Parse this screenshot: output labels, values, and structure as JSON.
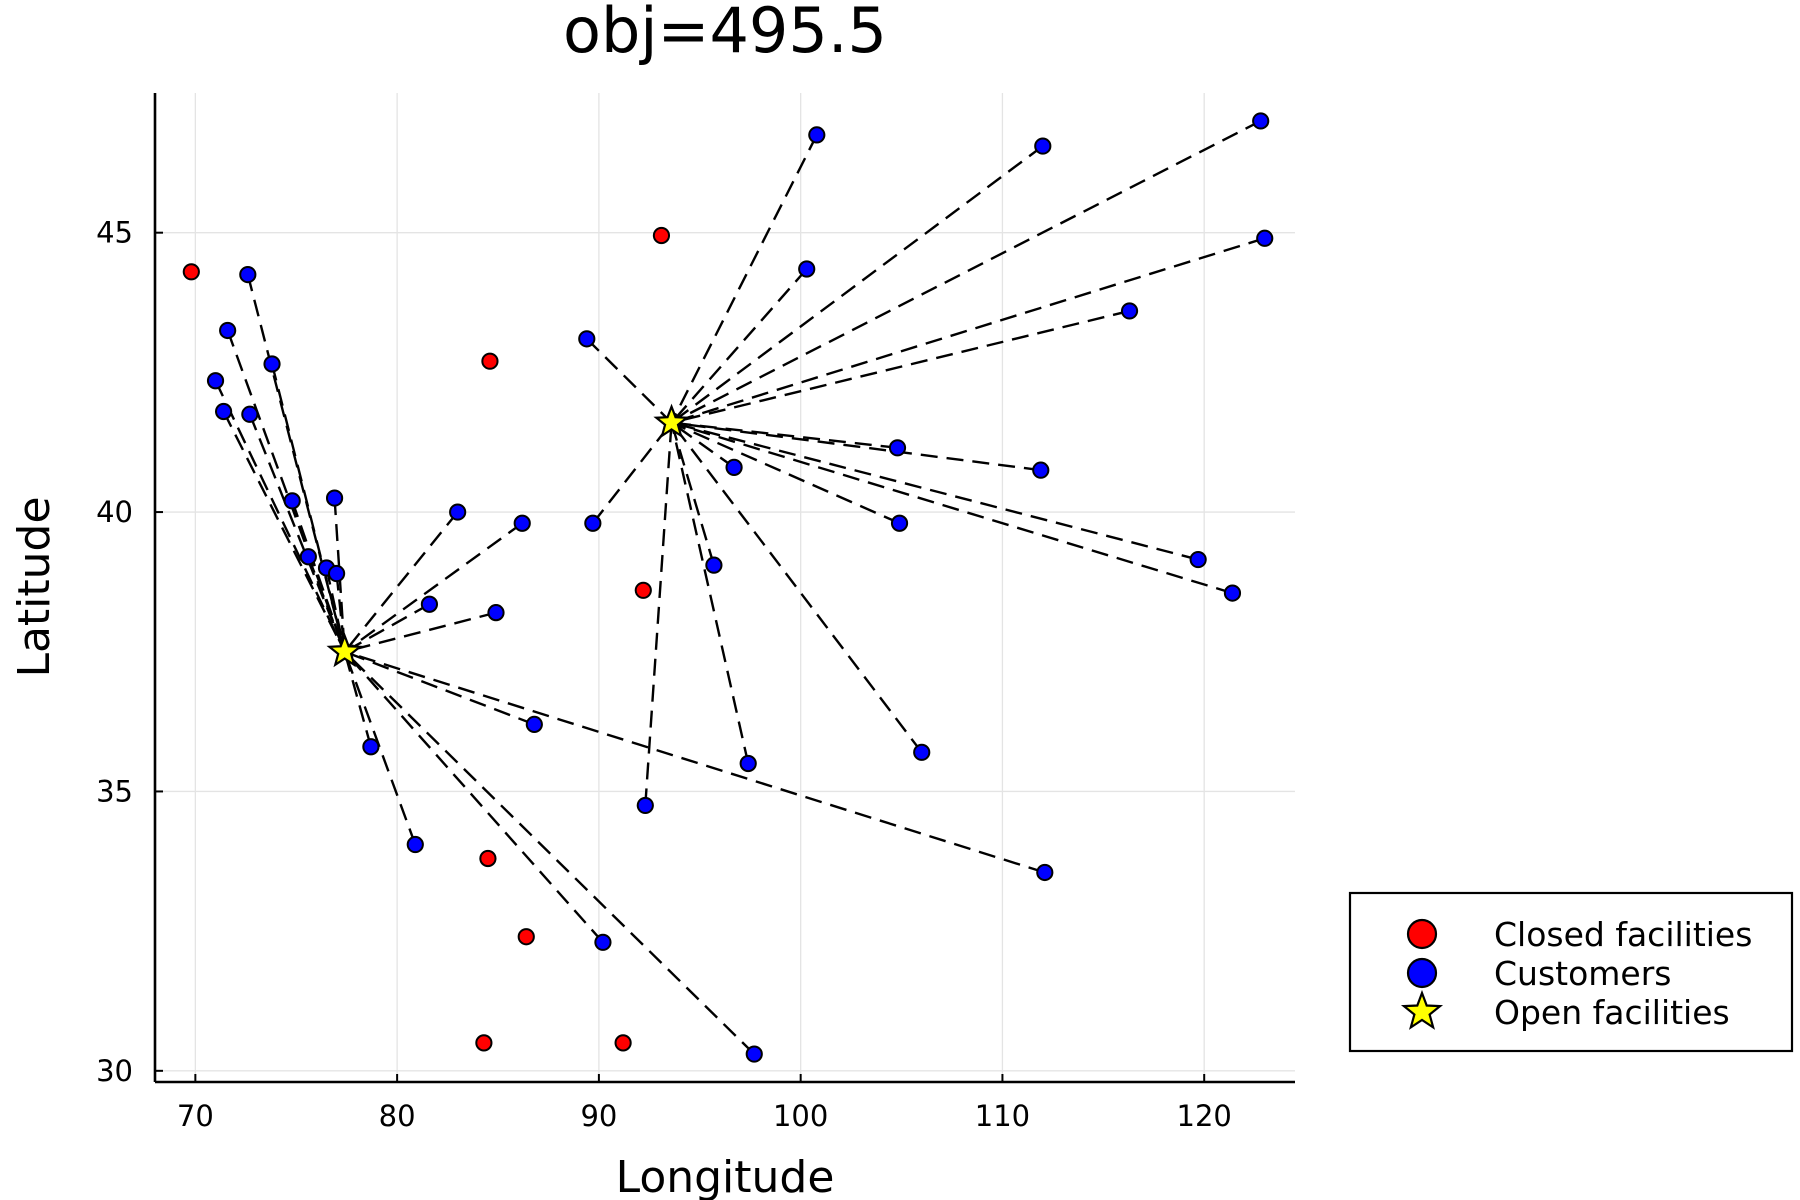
{
  "chart_data": {
    "type": "scatter",
    "title": "obj=495.5",
    "xlabel": "Longitude",
    "ylabel": "Latitude",
    "xlim": [
      68,
      124.5
    ],
    "ylim": [
      29.8,
      47.5
    ],
    "xticks": [
      70,
      80,
      90,
      100,
      110,
      120
    ],
    "yticks": [
      30,
      35,
      40,
      45
    ],
    "grid": true,
    "legend_position": "outside-bottom-right",
    "colors": {
      "closed": "#ff0000",
      "customer": "#0000ff",
      "open": "#ffff00",
      "marker_stroke": "#000000",
      "line": "#000000"
    },
    "series": [
      {
        "name": "Closed facilities",
        "marker": "circle",
        "color": "#ff0000",
        "points": [
          [
            69.8,
            44.3
          ],
          [
            84.6,
            42.7
          ],
          [
            93.1,
            44.95
          ],
          [
            92.2,
            38.6
          ],
          [
            84.5,
            33.8
          ],
          [
            86.4,
            32.4
          ],
          [
            84.3,
            30.5
          ],
          [
            91.2,
            30.5
          ]
        ]
      },
      {
        "name": "Customers",
        "marker": "circle",
        "color": "#0000ff",
        "points": [
          [
            72.6,
            44.25
          ],
          [
            71.6,
            43.25
          ],
          [
            73.8,
            42.65
          ],
          [
            71.0,
            42.35
          ],
          [
            71.4,
            41.8
          ],
          [
            72.7,
            41.75
          ],
          [
            74.8,
            40.2
          ],
          [
            76.9,
            40.25
          ],
          [
            75.6,
            39.2
          ],
          [
            76.5,
            39.0
          ],
          [
            77.0,
            38.9
          ],
          [
            81.6,
            38.35
          ],
          [
            83.0,
            40.0
          ],
          [
            86.2,
            39.8
          ],
          [
            84.9,
            38.2
          ],
          [
            86.8,
            36.2
          ],
          [
            78.7,
            35.8
          ],
          [
            80.9,
            34.05
          ],
          [
            90.2,
            32.3
          ],
          [
            97.7,
            30.3
          ],
          [
            112.1,
            33.55
          ],
          [
            89.4,
            43.1
          ],
          [
            89.7,
            39.8
          ],
          [
            100.8,
            46.75
          ],
          [
            100.3,
            44.35
          ],
          [
            112.0,
            46.55
          ],
          [
            122.8,
            47.0
          ],
          [
            123.0,
            44.9
          ],
          [
            116.3,
            43.6
          ],
          [
            104.8,
            41.15
          ],
          [
            96.7,
            40.8
          ],
          [
            111.9,
            40.75
          ],
          [
            104.9,
            39.8
          ],
          [
            95.7,
            39.05
          ],
          [
            119.7,
            39.15
          ],
          [
            121.4,
            38.55
          ],
          [
            97.4,
            35.5
          ],
          [
            106.0,
            35.7
          ],
          [
            92.3,
            34.75
          ]
        ]
      },
      {
        "name": "Open facilities",
        "marker": "star",
        "color": "#ffff00",
        "points": [
          [
            77.4,
            37.5
          ],
          [
            93.6,
            41.6
          ]
        ]
      }
    ],
    "assignments": [
      {
        "facility": [
          77.4,
          37.5
        ],
        "customers": [
          [
            72.6,
            44.25
          ],
          [
            71.6,
            43.25
          ],
          [
            73.8,
            42.65
          ],
          [
            71.0,
            42.35
          ],
          [
            71.4,
            41.8
          ],
          [
            72.7,
            41.75
          ],
          [
            74.8,
            40.2
          ],
          [
            76.9,
            40.25
          ],
          [
            75.6,
            39.2
          ],
          [
            76.5,
            39.0
          ],
          [
            77.0,
            38.9
          ],
          [
            81.6,
            38.35
          ],
          [
            83.0,
            40.0
          ],
          [
            86.2,
            39.8
          ],
          [
            84.9,
            38.2
          ],
          [
            86.8,
            36.2
          ],
          [
            78.7,
            35.8
          ],
          [
            80.9,
            34.05
          ],
          [
            90.2,
            32.3
          ],
          [
            97.7,
            30.3
          ],
          [
            112.1,
            33.55
          ]
        ]
      },
      {
        "facility": [
          93.6,
          41.6
        ],
        "customers": [
          [
            89.4,
            43.1
          ],
          [
            89.7,
            39.8
          ],
          [
            100.8,
            46.75
          ],
          [
            100.3,
            44.35
          ],
          [
            112.0,
            46.55
          ],
          [
            122.8,
            47.0
          ],
          [
            123.0,
            44.9
          ],
          [
            116.3,
            43.6
          ],
          [
            104.8,
            41.15
          ],
          [
            96.7,
            40.8
          ],
          [
            111.9,
            40.75
          ],
          [
            104.9,
            39.8
          ],
          [
            95.7,
            39.05
          ],
          [
            119.7,
            39.15
          ],
          [
            121.4,
            38.55
          ],
          [
            97.4,
            35.5
          ],
          [
            106.0,
            35.7
          ],
          [
            92.3,
            34.75
          ]
        ]
      }
    ]
  }
}
